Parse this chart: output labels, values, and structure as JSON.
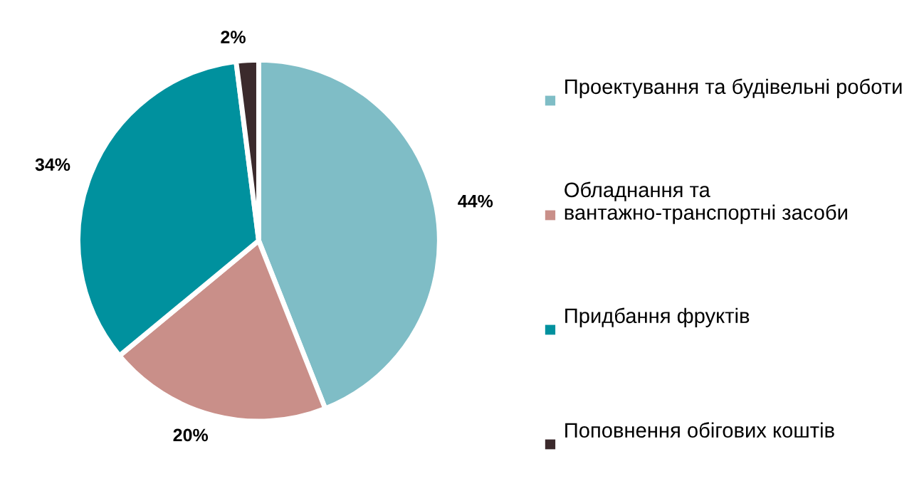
{
  "chart_data": {
    "type": "pie",
    "categories": [
      "Проектування та будівельні роботи",
      "Обладнання та вантажно-транспортні засоби",
      "Придбання фруктів",
      "Поповнення обігових коштів"
    ],
    "values": [
      44,
      20,
      34,
      2
    ],
    "colors": [
      "#7fbdc6",
      "#c98f89",
      "#00919e",
      "#3b2a2c"
    ],
    "value_labels": [
      "44%",
      "20%",
      "34%",
      "2%"
    ],
    "legend": "right"
  }
}
